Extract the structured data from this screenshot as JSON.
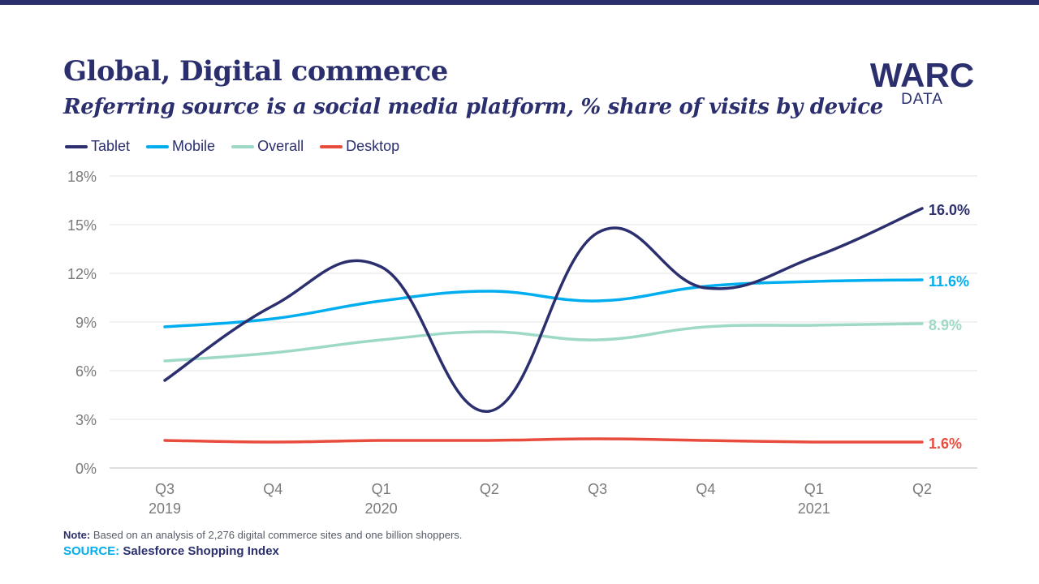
{
  "header": {
    "title": "Global, Digital commerce",
    "subtitle": "Referring source is a social media platform, % share of visits by device"
  },
  "logo": {
    "main": "WARC",
    "sub": "DATA"
  },
  "footer": {
    "note_label": "Note:",
    "note_text": " Based on an analysis of 2,276 digital commerce sites and one billion shoppers.",
    "source_label": "SOURCE:",
    "source_text": " Salesforce Shopping Index"
  },
  "chart_data": {
    "type": "line",
    "title": "Global, Digital commerce",
    "subtitle": "Referring source is a social media platform, % share of visits by device",
    "categories": [
      "Q3",
      "Q4",
      "Q1",
      "Q2",
      "Q3",
      "Q4",
      "Q1",
      "Q2"
    ],
    "year_labels": [
      "2019",
      "",
      "2020",
      "",
      "",
      "",
      "2021",
      ""
    ],
    "y_unit": "%",
    "ylim": [
      0,
      18
    ],
    "yticks": [
      0,
      3,
      6,
      9,
      12,
      15,
      18
    ],
    "ytick_labels": [
      "0%",
      "3%",
      "6%",
      "9%",
      "12%",
      "15%",
      "18%"
    ],
    "grid": true,
    "legend_position": "top-left",
    "series": [
      {
        "name": "Tablet",
        "color": "#2b2f6e",
        "values": [
          5.4,
          10.0,
          12.4,
          3.5,
          14.5,
          11.1,
          13.0,
          16.0
        ],
        "end_label": "16.0%"
      },
      {
        "name": "Mobile",
        "color": "#00aeef",
        "values": [
          8.7,
          9.2,
          10.3,
          10.9,
          10.3,
          11.2,
          11.5,
          11.6
        ],
        "end_label": "11.6%"
      },
      {
        "name": "Overall",
        "color": "#9ed9c8",
        "values": [
          6.6,
          7.1,
          7.9,
          8.4,
          7.9,
          8.7,
          8.8,
          8.9
        ],
        "end_label": "8.9%"
      },
      {
        "name": "Desktop",
        "color": "#e84c3d",
        "values": [
          1.7,
          1.6,
          1.7,
          1.7,
          1.8,
          1.7,
          1.6,
          1.6
        ],
        "end_label": "1.6%"
      }
    ]
  }
}
